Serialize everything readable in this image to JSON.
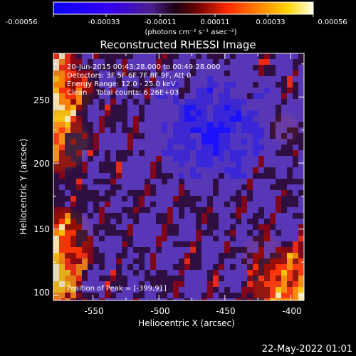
{
  "chart_data": {
    "type": "heatmap",
    "title": "Reconstructed RHESSI Image",
    "xlabel": "Heliocentric X (arcsec)",
    "ylabel": "Heliocentric Y (arcsec)",
    "xlim": [
      -580,
      -390
    ],
    "ylim": [
      96,
      283
    ],
    "x_ticks": [
      -550,
      -500,
      -450,
      -400
    ],
    "y_ticks": [
      100,
      150,
      200,
      250
    ],
    "x_tick_labels": [
      "-550",
      "-500",
      "-450",
      "-400"
    ],
    "y_tick_labels": [
      "100",
      "150",
      "200",
      "250"
    ],
    "colorbar": {
      "tick_values": [
        -0.00056,
        -0.00033,
        -0.00011,
        0.00011,
        0.00033,
        0.00056
      ],
      "tick_labels": [
        "-0.00056",
        "-0.00033",
        "-0.00011",
        "0.00011",
        "0.00033",
        "0.00056"
      ],
      "unit_label": "(photons cm⁻² s⁻¹ asec⁻²)",
      "colors": [
        "#0000ff",
        "#6a2bd0",
        "#2a0020",
        "#aa0000",
        "#ff5a00",
        "#ffb000",
        "#ffffcc"
      ]
    },
    "annotations": [
      "20-Jun-2015 00:43:28.000 to 00:49:28.000",
      "Detectors: 3F 5F 6F 7F 8F 9F, Att 0",
      "Energy Range: 12.0 - 25.0 keV",
      "Clean    Total counts: 6.26E+03"
    ],
    "peak_label": "Position of Peak = [-399,91]",
    "peak_position": [
      -399,
      91
    ]
  },
  "footer": {
    "timestamp": "22-May-2022 01:01"
  }
}
